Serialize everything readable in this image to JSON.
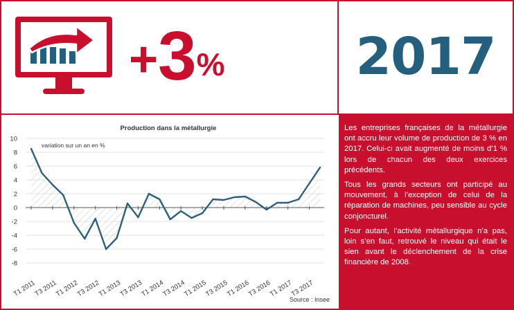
{
  "headline": {
    "sign": "+",
    "value": "3",
    "unit": "%",
    "icon": "monitor-rising-chart-icon"
  },
  "year": "2017",
  "text": {
    "paragraphs": [
      "Les entreprises françaises de la métallurgie ont accru leur volume de production de 3 % en 2017. Celui-ci avait augmenté de moins d’1 % lors de chacun des deux exercices précédents.",
      "Tous les grands secteurs ont participé au mouvement, à l’exception de celui de la réparation de machines, peu sensible au cycle conjoncturel.",
      "Pour autant, l’activité métallurgique n’a pas, loin s’en faut, retrouvé le niveau qui était le sien avant le déclenchement de la crise financière de 2008."
    ]
  },
  "colors": {
    "accent_red": "#c8102e",
    "year_blue": "#255f7e",
    "line": "#2e5f7b"
  },
  "chart_data": {
    "type": "line",
    "title": "Production dans la métallurgie",
    "annotation": "variation sur un an en %",
    "source": "Source : Insee",
    "xlabel": "",
    "ylabel": "",
    "ylim": [
      -8,
      10
    ],
    "yticks": [
      10,
      8,
      6,
      4,
      2,
      0,
      -2,
      -4,
      -6,
      -8
    ],
    "area_fill": "hatched",
    "categories": [
      "T1 2011",
      "T2 2011",
      "T3 2011",
      "T4 2011",
      "T1 2012",
      "T2 2012",
      "T3 2012",
      "T4 2012",
      "T1 2013",
      "T2 2013",
      "T3 2013",
      "T4 2013",
      "T1 2014",
      "T2 2014",
      "T3 2014",
      "T4 2014",
      "T1 2015",
      "T2 2015",
      "T3 2015",
      "T4 2015",
      "T1 2016",
      "T2 2016",
      "T3 2016",
      "T4 2016",
      "T1 2017",
      "T2 2017",
      "T3 2017",
      "T4 2017"
    ],
    "xtick_labels": [
      "T1 2011",
      "T3 2011",
      "T1 2012",
      "T3 2012",
      "T1 2013",
      "T3 2013",
      "T1 2014",
      "T3 2014",
      "T1 2015",
      "T3 2015",
      "T1 2016",
      "T3 2016",
      "T1 2017",
      "T3 2017"
    ],
    "values": [
      8.5,
      5.0,
      3.3,
      1.8,
      -2.2,
      -4.5,
      -1.6,
      -6.0,
      -4.4,
      0.6,
      -1.4,
      2.0,
      1.2,
      -1.7,
      -0.5,
      -1.5,
      -0.8,
      1.2,
      1.1,
      1.5,
      1.6,
      0.8,
      -0.3,
      0.7,
      0.7,
      1.2,
      3.5,
      5.8
    ]
  }
}
